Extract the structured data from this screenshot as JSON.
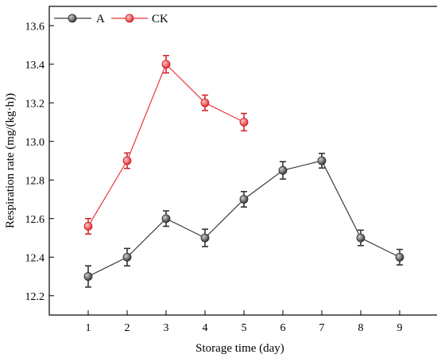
{
  "chart_data": {
    "type": "line",
    "xlabel": "Storage time (day)",
    "ylabel": "Respiration rate (mg/(kg·h))",
    "xlim": [
      0,
      10
    ],
    "ylim": [
      12.1,
      13.7
    ],
    "x_ticks": [
      1,
      2,
      3,
      4,
      5,
      6,
      7,
      8,
      9
    ],
    "y_ticks": [
      12.2,
      12.4,
      12.6,
      12.8,
      13.0,
      13.2,
      13.4,
      13.6
    ],
    "y_tick_labels": [
      "12.2",
      "12.4",
      "12.6",
      "12.8",
      "13.0",
      "13.2",
      "13.4",
      "13.6"
    ],
    "grid": false,
    "legend_position": "top-left",
    "series": [
      {
        "name": "A",
        "color": "#3a3a3a",
        "x": [
          1,
          2,
          3,
          4,
          5,
          6,
          7,
          8,
          9
        ],
        "y": [
          12.3,
          12.4,
          12.6,
          12.5,
          12.7,
          12.85,
          12.9,
          12.5,
          12.4
        ],
        "error": [
          0.055,
          0.045,
          0.04,
          0.045,
          0.04,
          0.045,
          0.038,
          0.04,
          0.04
        ]
      },
      {
        "name": "CK",
        "color": "#e8353b",
        "x": [
          1,
          2,
          3,
          4,
          5
        ],
        "y": [
          12.56,
          12.9,
          13.4,
          13.2,
          13.1
        ],
        "error": [
          0.04,
          0.04,
          0.045,
          0.04,
          0.045
        ]
      }
    ]
  }
}
